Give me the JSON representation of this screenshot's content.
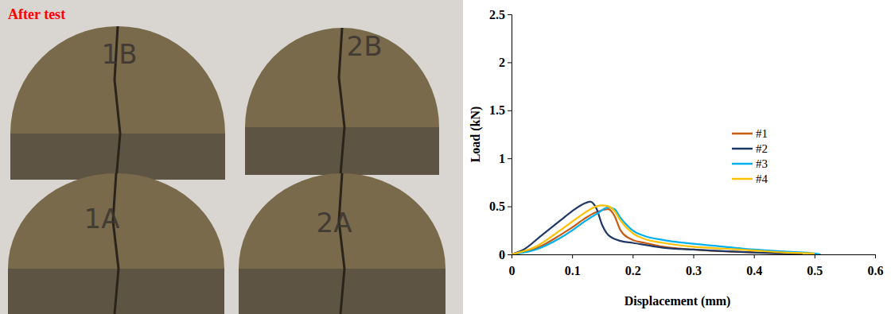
{
  "photo": {
    "title": "After test",
    "specimens": [
      "1B",
      "2B",
      "1A",
      "2A"
    ]
  },
  "chart_data": {
    "type": "line",
    "x_label": "Displacement (mm)",
    "y_label": "Load (kN)",
    "xlim": [
      0,
      0.6
    ],
    "xticks": [
      0,
      0.1,
      0.2,
      0.3,
      0.4,
      0.5,
      0.6
    ],
    "ylim": [
      0,
      2.5
    ],
    "yticks": [
      0,
      0.5,
      1,
      1.5,
      2,
      2.5
    ],
    "grid": false,
    "legend": "right",
    "series": [
      {
        "name": "#1",
        "color": "#c55a11",
        "x": [
          0,
          0.04,
          0.08,
          0.1,
          0.12,
          0.14,
          0.16,
          0.17,
          0.18,
          0.2,
          0.22,
          0.25,
          0.3,
          0.4,
          0.48
        ],
        "values": [
          0,
          0.06,
          0.2,
          0.28,
          0.37,
          0.44,
          0.47,
          0.4,
          0.25,
          0.15,
          0.12,
          0.08,
          0.05,
          0.02,
          0.01
        ]
      },
      {
        "name": "#2",
        "color": "#203864",
        "x": [
          0,
          0.02,
          0.05,
          0.08,
          0.1,
          0.12,
          0.13,
          0.14,
          0.15,
          0.16,
          0.18,
          0.2,
          0.25,
          0.3,
          0.4,
          0.48
        ],
        "values": [
          0,
          0.05,
          0.2,
          0.35,
          0.45,
          0.53,
          0.55,
          0.48,
          0.3,
          0.2,
          0.14,
          0.12,
          0.07,
          0.05,
          0.02,
          0.01
        ]
      },
      {
        "name": "#3",
        "color": "#00b0f0",
        "x": [
          0,
          0.04,
          0.08,
          0.1,
          0.12,
          0.14,
          0.16,
          0.17,
          0.18,
          0.2,
          0.22,
          0.25,
          0.3,
          0.35,
          0.4,
          0.45,
          0.5,
          0.51
        ],
        "values": [
          0,
          0.05,
          0.17,
          0.25,
          0.34,
          0.42,
          0.49,
          0.47,
          0.38,
          0.25,
          0.19,
          0.15,
          0.11,
          0.08,
          0.05,
          0.03,
          0.01,
          0
        ]
      },
      {
        "name": "#4",
        "color": "#ffc000",
        "x": [
          0,
          0.04,
          0.08,
          0.1,
          0.12,
          0.14,
          0.15,
          0.16,
          0.17,
          0.18,
          0.2,
          0.22,
          0.25,
          0.3,
          0.35,
          0.4,
          0.45,
          0.5
        ],
        "values": [
          0,
          0.08,
          0.25,
          0.34,
          0.43,
          0.5,
          0.51,
          0.5,
          0.45,
          0.35,
          0.22,
          0.16,
          0.12,
          0.08,
          0.06,
          0.04,
          0.02,
          0.01
        ]
      }
    ]
  }
}
